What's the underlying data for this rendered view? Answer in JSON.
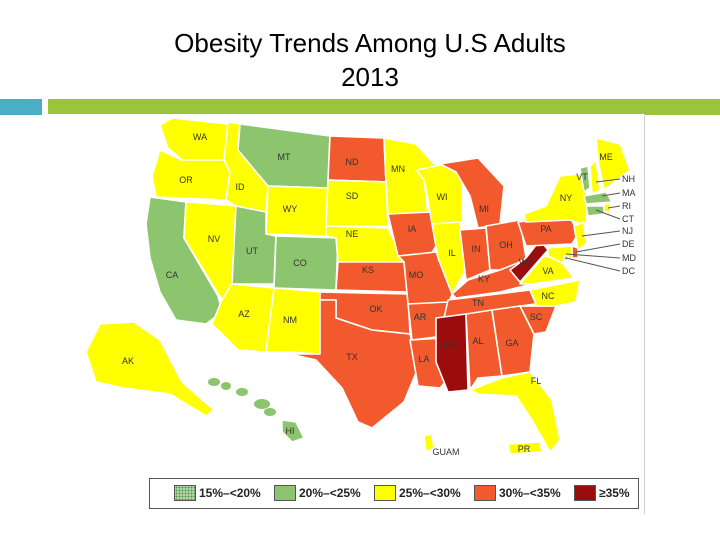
{
  "title": "Obesity Trends Among U.S Adults",
  "year": "2013",
  "colors": {
    "accent_left": "#4aaec6",
    "accent_right": "#9bc43c",
    "green": "#8dc46e",
    "yellow": "#ffff00",
    "orange": "#f25a2e",
    "darkred": "#9b0d0d",
    "lightgreen": "#c6e3b3"
  },
  "legend": [
    {
      "label": "15%–<20%",
      "swatch": "lightgreen"
    },
    {
      "label": "20%–<25%",
      "swatch": "green"
    },
    {
      "label": "25%–<30%",
      "swatch": "yellow"
    },
    {
      "label": "30%–<35%",
      "swatch": "orange"
    },
    {
      "label": "≥35%",
      "swatch": "darkred"
    }
  ],
  "states": {
    "WA": {
      "label": "WA",
      "cat": "yellow"
    },
    "OR": {
      "label": "OR",
      "cat": "yellow"
    },
    "CA": {
      "label": "CA",
      "cat": "green"
    },
    "NV": {
      "label": "NV",
      "cat": "yellow"
    },
    "ID": {
      "label": "ID",
      "cat": "yellow"
    },
    "MT": {
      "label": "MT",
      "cat": "green"
    },
    "WY": {
      "label": "WY",
      "cat": "yellow"
    },
    "UT": {
      "label": "UT",
      "cat": "green"
    },
    "CO": {
      "label": "CO",
      "cat": "green"
    },
    "AZ": {
      "label": "AZ",
      "cat": "yellow"
    },
    "NM": {
      "label": "NM",
      "cat": "yellow"
    },
    "ND": {
      "label": "ND",
      "cat": "orange"
    },
    "SD": {
      "label": "SD",
      "cat": "yellow"
    },
    "NE": {
      "label": "NE",
      "cat": "yellow"
    },
    "KS": {
      "label": "KS",
      "cat": "orange"
    },
    "OK": {
      "label": "OK",
      "cat": "orange"
    },
    "TX": {
      "label": "TX",
      "cat": "orange"
    },
    "MN": {
      "label": "MN",
      "cat": "yellow"
    },
    "IA": {
      "label": "IA",
      "cat": "orange"
    },
    "MO": {
      "label": "MO",
      "cat": "orange"
    },
    "AR": {
      "label": "AR",
      "cat": "orange"
    },
    "LA": {
      "label": "LA",
      "cat": "orange"
    },
    "WI": {
      "label": "WI",
      "cat": "yellow"
    },
    "IL": {
      "label": "IL",
      "cat": "yellow"
    },
    "MI": {
      "label": "MI",
      "cat": "orange"
    },
    "IN": {
      "label": "IN",
      "cat": "orange"
    },
    "OH": {
      "label": "OH",
      "cat": "orange"
    },
    "KY": {
      "label": "KY",
      "cat": "orange"
    },
    "TN": {
      "label": "TN",
      "cat": "orange"
    },
    "MS": {
      "label": "MS",
      "cat": "darkred"
    },
    "AL": {
      "label": "AL",
      "cat": "orange"
    },
    "GA": {
      "label": "GA",
      "cat": "orange"
    },
    "FL": {
      "label": "FL",
      "cat": "yellow"
    },
    "SC": {
      "label": "SC",
      "cat": "orange"
    },
    "NC": {
      "label": "NC",
      "cat": "yellow"
    },
    "VA": {
      "label": "VA",
      "cat": "yellow"
    },
    "WV": {
      "label": "WV",
      "cat": "darkred"
    },
    "PA": {
      "label": "PA",
      "cat": "orange"
    },
    "NY": {
      "label": "NY",
      "cat": "yellow"
    },
    "VT": {
      "label": "VT",
      "cat": "green"
    },
    "NH": {
      "label": "NH",
      "cat": "yellow"
    },
    "ME": {
      "label": "ME",
      "cat": "yellow"
    },
    "MA": {
      "label": "MA",
      "cat": "green"
    },
    "RI": {
      "label": "RI",
      "cat": "yellow"
    },
    "CT": {
      "label": "CT",
      "cat": "green"
    },
    "NJ": {
      "label": "NJ",
      "cat": "yellow"
    },
    "DE": {
      "label": "DE",
      "cat": "orange"
    },
    "MD": {
      "label": "MD",
      "cat": "yellow"
    },
    "DC": {
      "label": "DC",
      "cat": "green"
    },
    "AK": {
      "label": "AK",
      "cat": "yellow"
    },
    "HI": {
      "label": "HI",
      "cat": "green"
    },
    "GUAM": {
      "label": "GUAM",
      "cat": "yellow"
    },
    "PR": {
      "label": "PR",
      "cat": "yellow"
    }
  }
}
